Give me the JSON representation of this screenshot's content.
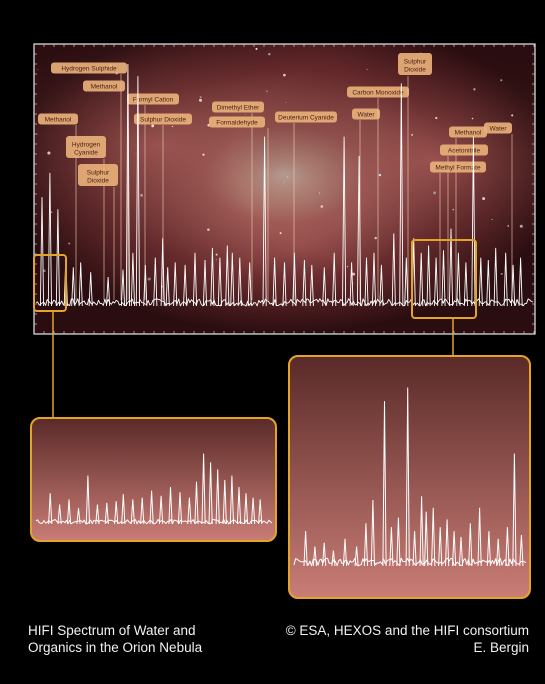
{
  "chart_data": {
    "type": "line",
    "title": "",
    "xlabel": "",
    "ylabel": "",
    "grid": false,
    "molecule_labels": [
      "Hydrogen Sulphide",
      "Methanol",
      "Methanol",
      "Hydrogen Cyanide",
      "Sulphur Dioxide",
      "Formyl Cation",
      "Sulphur Dioxide",
      "Dimethyl Ether",
      "Formaldehyde",
      "Deuterium Cyanide",
      "Water",
      "Carbon Monoxide",
      "Sulphur Dioxide",
      "Water",
      "Methanol",
      "Acetonitrile",
      "Methyl Formate"
    ],
    "spectrum_peaks": [
      {
        "x": 0.012,
        "y": 0.45
      },
      {
        "x": 0.028,
        "y": 0.55
      },
      {
        "x": 0.044,
        "y": 0.4
      },
      {
        "x": 0.06,
        "y": 0.2
      },
      {
        "x": 0.075,
        "y": 0.16
      },
      {
        "x": 0.09,
        "y": 0.18
      },
      {
        "x": 0.11,
        "y": 0.14
      },
      {
        "x": 0.145,
        "y": 0.12
      },
      {
        "x": 0.175,
        "y": 0.15
      },
      {
        "x": 0.185,
        "y": 1.0
      },
      {
        "x": 0.195,
        "y": 0.22
      },
      {
        "x": 0.205,
        "y": 0.95
      },
      {
        "x": 0.22,
        "y": 0.17
      },
      {
        "x": 0.24,
        "y": 0.2
      },
      {
        "x": 0.255,
        "y": 0.28
      },
      {
        "x": 0.265,
        "y": 0.16
      },
      {
        "x": 0.28,
        "y": 0.18
      },
      {
        "x": 0.3,
        "y": 0.17
      },
      {
        "x": 0.32,
        "y": 0.22
      },
      {
        "x": 0.34,
        "y": 0.19
      },
      {
        "x": 0.355,
        "y": 0.24
      },
      {
        "x": 0.37,
        "y": 0.2
      },
      {
        "x": 0.385,
        "y": 0.25
      },
      {
        "x": 0.395,
        "y": 0.22
      },
      {
        "x": 0.41,
        "y": 0.2
      },
      {
        "x": 0.43,
        "y": 0.18
      },
      {
        "x": 0.46,
        "y": 0.7
      },
      {
        "x": 0.48,
        "y": 0.2
      },
      {
        "x": 0.5,
        "y": 0.18
      },
      {
        "x": 0.52,
        "y": 0.22
      },
      {
        "x": 0.54,
        "y": 0.19
      },
      {
        "x": 0.555,
        "y": 0.17
      },
      {
        "x": 0.58,
        "y": 0.16
      },
      {
        "x": 0.6,
        "y": 0.22
      },
      {
        "x": 0.62,
        "y": 0.7
      },
      {
        "x": 0.635,
        "y": 0.18
      },
      {
        "x": 0.65,
        "y": 0.62
      },
      {
        "x": 0.665,
        "y": 0.2
      },
      {
        "x": 0.68,
        "y": 0.22
      },
      {
        "x": 0.695,
        "y": 0.17
      },
      {
        "x": 0.72,
        "y": 0.3
      },
      {
        "x": 0.735,
        "y": 0.92
      },
      {
        "x": 0.745,
        "y": 0.2
      },
      {
        "x": 0.76,
        "y": 0.28
      },
      {
        "x": 0.775,
        "y": 0.22
      },
      {
        "x": 0.79,
        "y": 0.25
      },
      {
        "x": 0.805,
        "y": 0.2
      },
      {
        "x": 0.82,
        "y": 0.23
      },
      {
        "x": 0.835,
        "y": 0.32
      },
      {
        "x": 0.85,
        "y": 0.22
      },
      {
        "x": 0.865,
        "y": 0.18
      },
      {
        "x": 0.88,
        "y": 0.7
      },
      {
        "x": 0.895,
        "y": 0.2
      },
      {
        "x": 0.91,
        "y": 0.19
      },
      {
        "x": 0.925,
        "y": 0.24
      },
      {
        "x": 0.945,
        "y": 0.22
      },
      {
        "x": 0.96,
        "y": 0.17
      },
      {
        "x": 0.975,
        "y": 0.2
      }
    ],
    "inset_left_peaks": [
      {
        "x": 0.06,
        "y": 0.35
      },
      {
        "x": 0.1,
        "y": 0.22
      },
      {
        "x": 0.14,
        "y": 0.28
      },
      {
        "x": 0.18,
        "y": 0.18
      },
      {
        "x": 0.22,
        "y": 0.55
      },
      {
        "x": 0.26,
        "y": 0.22
      },
      {
        "x": 0.3,
        "y": 0.24
      },
      {
        "x": 0.34,
        "y": 0.26
      },
      {
        "x": 0.37,
        "y": 0.34
      },
      {
        "x": 0.41,
        "y": 0.28
      },
      {
        "x": 0.45,
        "y": 0.3
      },
      {
        "x": 0.49,
        "y": 0.38
      },
      {
        "x": 0.53,
        "y": 0.32
      },
      {
        "x": 0.57,
        "y": 0.42
      },
      {
        "x": 0.61,
        "y": 0.36
      },
      {
        "x": 0.65,
        "y": 0.3
      },
      {
        "x": 0.68,
        "y": 0.48
      },
      {
        "x": 0.71,
        "y": 0.8
      },
      {
        "x": 0.74,
        "y": 0.7
      },
      {
        "x": 0.77,
        "y": 0.62
      },
      {
        "x": 0.8,
        "y": 0.5
      },
      {
        "x": 0.83,
        "y": 0.55
      },
      {
        "x": 0.86,
        "y": 0.42
      },
      {
        "x": 0.89,
        "y": 0.35
      },
      {
        "x": 0.92,
        "y": 0.3
      },
      {
        "x": 0.95,
        "y": 0.28
      }
    ],
    "inset_right_peaks": [
      {
        "x": 0.05,
        "y": 0.18
      },
      {
        "x": 0.09,
        "y": 0.1
      },
      {
        "x": 0.13,
        "y": 0.12
      },
      {
        "x": 0.17,
        "y": 0.08
      },
      {
        "x": 0.22,
        "y": 0.14
      },
      {
        "x": 0.27,
        "y": 0.1
      },
      {
        "x": 0.31,
        "y": 0.22
      },
      {
        "x": 0.34,
        "y": 0.34
      },
      {
        "x": 0.39,
        "y": 0.85
      },
      {
        "x": 0.42,
        "y": 0.2
      },
      {
        "x": 0.45,
        "y": 0.25
      },
      {
        "x": 0.49,
        "y": 0.92
      },
      {
        "x": 0.52,
        "y": 0.18
      },
      {
        "x": 0.55,
        "y": 0.36
      },
      {
        "x": 0.57,
        "y": 0.28
      },
      {
        "x": 0.6,
        "y": 0.3
      },
      {
        "x": 0.63,
        "y": 0.2
      },
      {
        "x": 0.66,
        "y": 0.24
      },
      {
        "x": 0.69,
        "y": 0.18
      },
      {
        "x": 0.72,
        "y": 0.15
      },
      {
        "x": 0.76,
        "y": 0.22
      },
      {
        "x": 0.8,
        "y": 0.3
      },
      {
        "x": 0.84,
        "y": 0.18
      },
      {
        "x": 0.88,
        "y": 0.14
      },
      {
        "x": 0.92,
        "y": 0.2
      },
      {
        "x": 0.95,
        "y": 0.58
      },
      {
        "x": 0.98,
        "y": 0.16
      }
    ]
  },
  "caption": {
    "left_line1": "HIFI Spectrum of Water and",
    "left_line2": "Organics in the Orion Nebula",
    "right_line1": "© ESA, HEXOS and the HIFI consortium",
    "right_line2": "E. Bergin"
  },
  "colors": {
    "background": "#000000",
    "accent_gold": "#e2a52a",
    "label_fill": "#e8b07a",
    "inset_top": "#5a2a28",
    "inset_bottom": "#c97d76",
    "spectrum_line": "#ffffff"
  }
}
